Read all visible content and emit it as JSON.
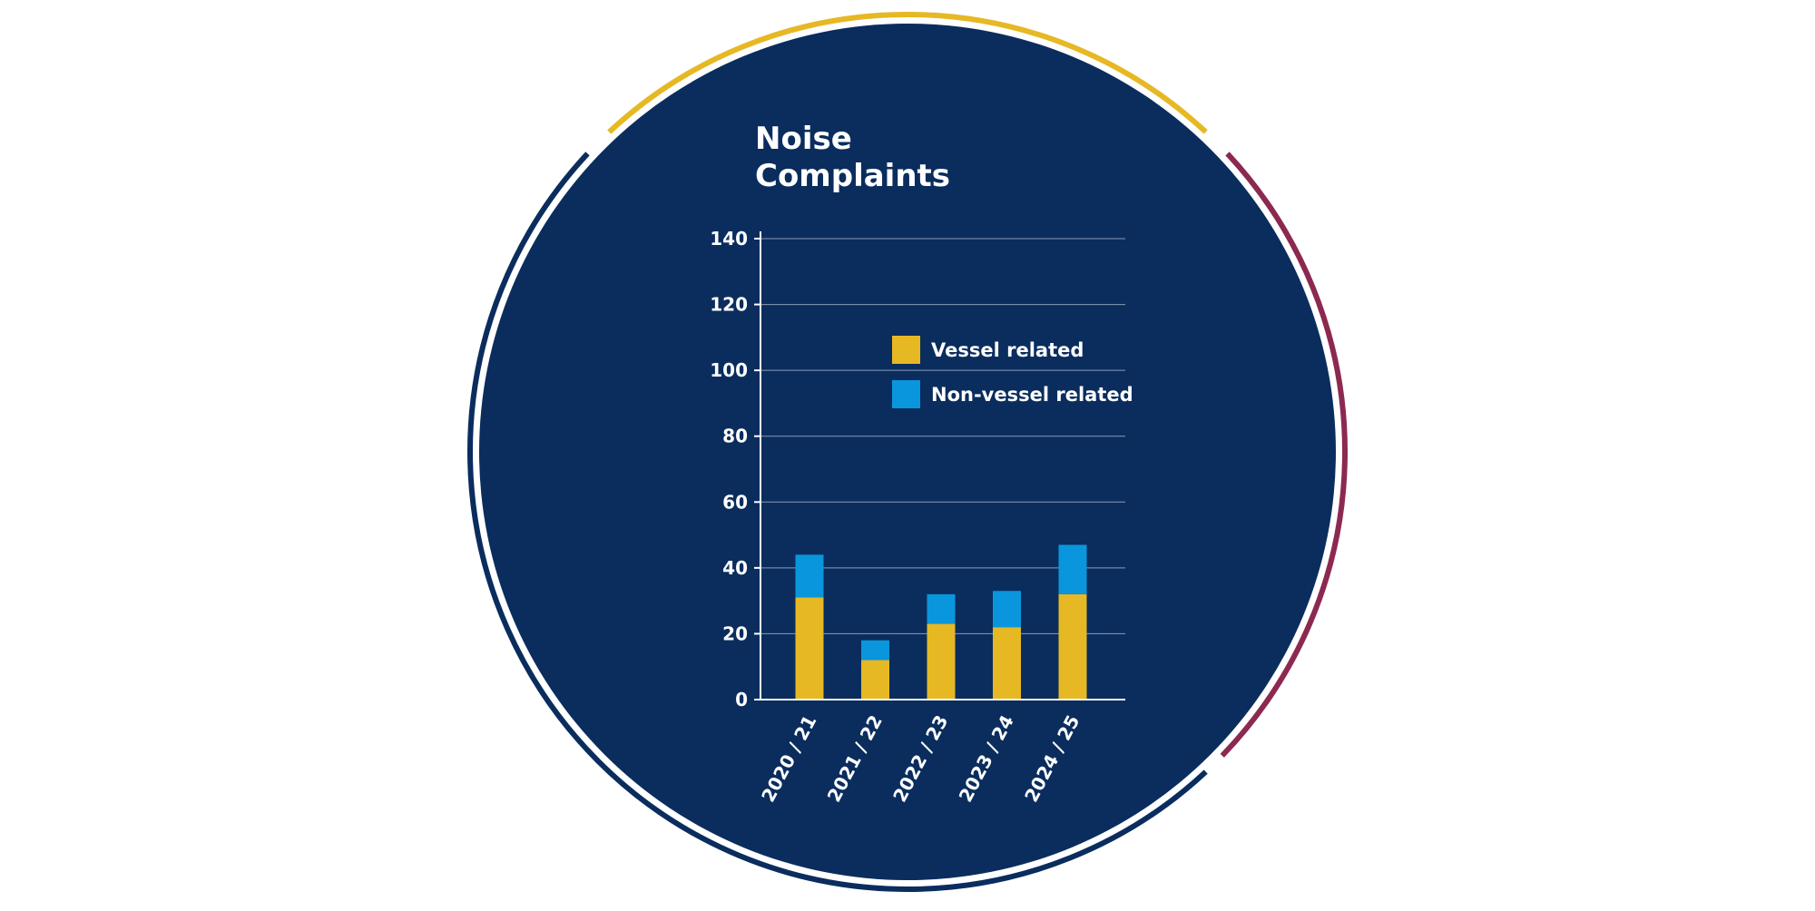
{
  "chart_data": {
    "type": "bar",
    "stacked": true,
    "title_lines": [
      "Noise",
      "Complaints"
    ],
    "categories": [
      "2020 / 21",
      "2021 / 22",
      "2022 / 23",
      "2023 / 24",
      "2024 / 25"
    ],
    "series": [
      {
        "name": "Vessel related",
        "color": "#e6b823",
        "values": [
          31,
          12,
          23,
          22,
          32
        ]
      },
      {
        "name": "Non-vessel related",
        "color": "#0a96dc",
        "values": [
          13,
          6,
          9,
          11,
          15
        ]
      }
    ],
    "yticks": [
      0,
      20,
      40,
      60,
      80,
      100,
      120,
      140
    ],
    "ylim": [
      0,
      140
    ],
    "grid": true,
    "legend_position": "upper-right"
  },
  "colors": {
    "circle_fill": "#0a2d5e",
    "ring_navy": "#0a2d5e",
    "ring_gold": "#e6b823",
    "ring_maroon": "#8c2950",
    "axis_text": "#ffffff",
    "grid": "#8a9bb6"
  }
}
